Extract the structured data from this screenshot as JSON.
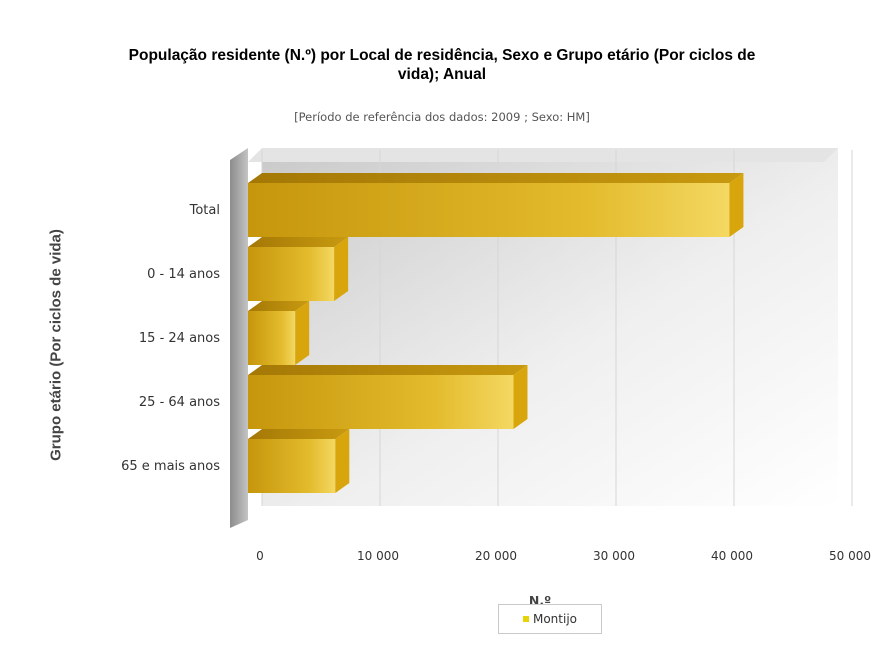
{
  "chart_data": {
    "type": "bar",
    "orientation": "horizontal",
    "title_line1": "População residente (N.º) por Local de residência, Sexo e Grupo etário (Por ciclos de",
    "title_line2": "vida); Anual",
    "subtitle": "[Período de referência dos dados: 2009 ; Sexo: HM]",
    "xlabel": "N.º",
    "ylabel": "Grupo etário (Por ciclos de vida)",
    "categories": [
      "Total",
      "0 - 14 anos",
      "15 - 24 anos",
      "25 - 64 anos",
      "65 e mais anos"
    ],
    "series": [
      {
        "name": "Montijo",
        "values": [
          40800,
          7300,
          4000,
          22500,
          7400
        ]
      }
    ],
    "xlim": [
      0,
      50000
    ],
    "xticks": [
      0,
      10000,
      20000,
      30000,
      40000,
      50000
    ],
    "xtick_labels": [
      "0",
      "10 000",
      "20 000",
      "30 000",
      "40 000",
      "50 000"
    ],
    "grid": true,
    "legend_position": "bottom",
    "colors": {
      "bar_front": "#e8c230",
      "bar_dark": "#b88a08",
      "bar_top": "#d9ab12",
      "legend_swatch": "#e8d20a"
    }
  }
}
